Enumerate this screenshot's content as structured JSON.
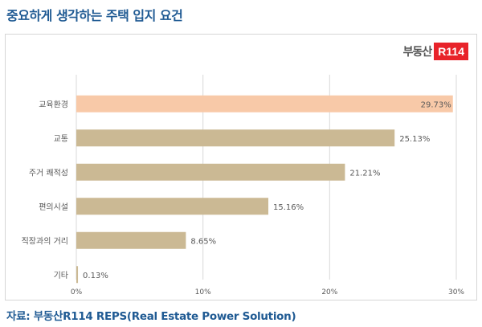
{
  "title": "중요하게 생각하는 주택 입지 요건",
  "source": "자료: 부동산R114 REPS(Real Estate Power Solution)",
  "logo": {
    "text": "부동산",
    "box": "R114"
  },
  "chart_data": {
    "type": "bar",
    "orientation": "horizontal",
    "categories": [
      "교육환경",
      "교통",
      "주거 쾌적성",
      "편의시설",
      "직장과의 거리",
      "기타"
    ],
    "values": [
      29.73,
      25.13,
      21.21,
      15.16,
      8.65,
      0.13
    ],
    "value_labels": [
      "29.73%",
      "25.13%",
      "21.21%",
      "15.16%",
      "8.65%",
      "0.13%"
    ],
    "xlim": [
      0,
      30
    ],
    "x_ticks": [
      0,
      10,
      20,
      30
    ],
    "x_tick_labels": [
      "0%",
      "10%",
      "20%",
      "30%"
    ],
    "grid": true,
    "colors": {
      "highlight": "#f8c9a8",
      "bar": "#cbb994",
      "grid": "#d9d9d9",
      "text": "#595959"
    },
    "highlight_index": 0
  }
}
